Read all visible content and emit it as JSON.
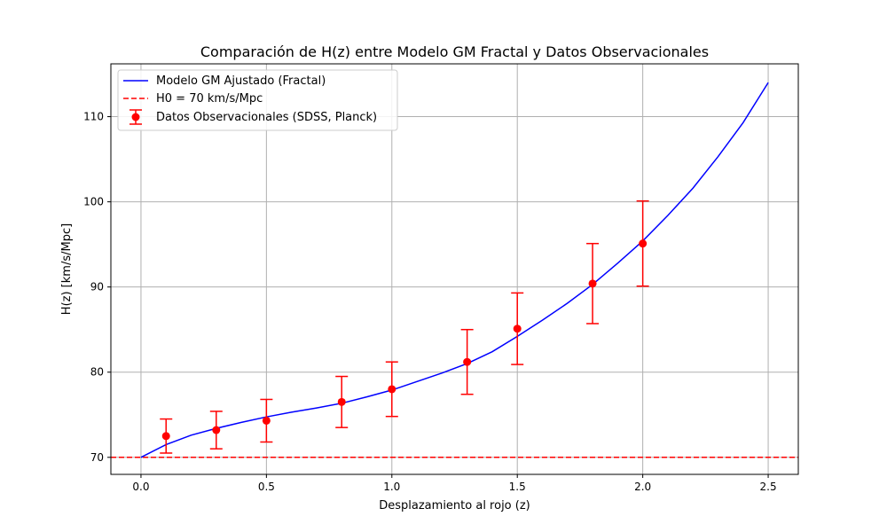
{
  "chart_data": {
    "type": "line",
    "title": "Comparación de H(z) entre Modelo GM Fractal y Datos Observacionales",
    "xlabel": "Desplazamiento al rojo (z)",
    "ylabel": "H(z) [km/s/Mpc]",
    "xlim": [
      -0.12,
      2.62
    ],
    "ylim": [
      68.0,
      116.2
    ],
    "xticks": [
      0.0,
      0.5,
      1.0,
      1.5,
      2.0,
      2.5
    ],
    "xtick_labels": [
      "0.0",
      "0.5",
      "1.0",
      "1.5",
      "2.0",
      "2.5"
    ],
    "yticks": [
      70,
      80,
      90,
      100,
      110
    ],
    "ytick_labels": [
      "70",
      "80",
      "90",
      "100",
      "110"
    ],
    "grid": true,
    "legend_position": "top-left",
    "series": [
      {
        "name": "Modelo GM Ajustado (Fractal)",
        "kind": "line",
        "color": "#0000ff",
        "x": [
          0.0,
          0.1,
          0.2,
          0.3,
          0.4,
          0.5,
          0.6,
          0.7,
          0.8,
          0.9,
          1.0,
          1.1,
          1.2,
          1.3,
          1.4,
          1.5,
          1.6,
          1.7,
          1.8,
          1.9,
          2.0,
          2.1,
          2.2,
          2.3,
          2.4,
          2.5
        ],
        "y": [
          70.0,
          71.5,
          72.6,
          73.4,
          74.1,
          74.75,
          75.3,
          75.8,
          76.35,
          77.1,
          77.9,
          78.9,
          79.9,
          81.0,
          82.4,
          84.2,
          86.1,
          88.1,
          90.3,
          92.8,
          95.4,
          98.4,
          101.6,
          105.3,
          109.3,
          114.0
        ]
      },
      {
        "name": "H0 = 70 km/s/Mpc",
        "kind": "hline",
        "color": "#ff0000",
        "y": 70
      },
      {
        "name": "Datos Observacionales (SDSS, Planck)",
        "kind": "errorbar",
        "color": "#ff0000",
        "x": [
          0.1,
          0.3,
          0.5,
          0.8,
          1.0,
          1.3,
          1.5,
          1.8,
          2.0
        ],
        "y": [
          72.5,
          73.2,
          74.3,
          76.5,
          78.0,
          81.2,
          85.1,
          90.4,
          95.1
        ],
        "err": [
          2.0,
          2.2,
          2.5,
          3.0,
          3.2,
          3.8,
          4.2,
          4.7,
          5.0
        ]
      }
    ]
  }
}
